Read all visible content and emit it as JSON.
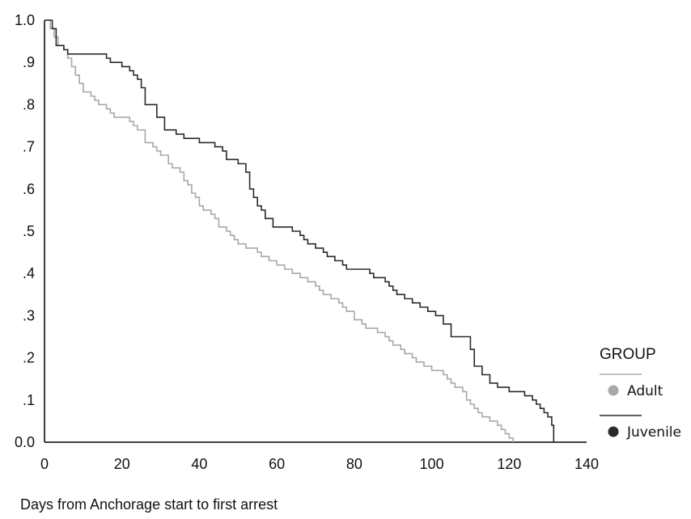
{
  "chart_data": {
    "type": "line",
    "title": "",
    "xlabel": "Days from Anchorage start to first arrest",
    "ylabel": "",
    "xlim": [
      0,
      140
    ],
    "ylim": [
      0,
      1
    ],
    "x_ticks": [
      {
        "value": 0,
        "label": "0"
      },
      {
        "value": 20,
        "label": "20"
      },
      {
        "value": 40,
        "label": "40"
      },
      {
        "value": 60,
        "label": "60"
      },
      {
        "value": 80,
        "label": "80"
      },
      {
        "value": 100,
        "label": "100"
      },
      {
        "value": 120,
        "label": "120"
      },
      {
        "value": 140,
        "label": "140"
      }
    ],
    "y_ticks": [
      {
        "value": 0.0,
        "label": "0.0"
      },
      {
        "value": 0.1,
        "label": ".1"
      },
      {
        "value": 0.2,
        "label": ".2"
      },
      {
        "value": 0.3,
        "label": ".3"
      },
      {
        "value": 0.4,
        "label": ".4"
      },
      {
        "value": 0.5,
        "label": ".5"
      },
      {
        "value": 0.6,
        "label": ".6"
      },
      {
        "value": 0.7,
        "label": ".7"
      },
      {
        "value": 0.8,
        "label": ".8"
      },
      {
        "value": 0.9,
        "label": ".9"
      },
      {
        "value": 1.0,
        "label": "1.0"
      }
    ],
    "grid": false,
    "step": true,
    "legend": {
      "title": "GROUP",
      "position": "right"
    },
    "series": [
      {
        "name": "Adult",
        "color": "#a8a8a8",
        "points": [
          [
            0,
            1.0
          ],
          [
            1.5,
            0.98
          ],
          [
            2.5,
            0.96
          ],
          [
            3.5,
            0.94
          ],
          [
            5,
            0.93
          ],
          [
            6,
            0.91
          ],
          [
            7,
            0.89
          ],
          [
            8,
            0.87
          ],
          [
            9,
            0.85
          ],
          [
            10,
            0.83
          ],
          [
            12,
            0.82
          ],
          [
            13,
            0.81
          ],
          [
            14,
            0.8
          ],
          [
            16,
            0.79
          ],
          [
            17,
            0.78
          ],
          [
            18,
            0.77
          ],
          [
            22,
            0.76
          ],
          [
            23,
            0.75
          ],
          [
            24,
            0.74
          ],
          [
            26,
            0.71
          ],
          [
            28,
            0.7
          ],
          [
            29,
            0.69
          ],
          [
            30,
            0.68
          ],
          [
            32,
            0.66
          ],
          [
            33,
            0.65
          ],
          [
            35,
            0.64
          ],
          [
            36,
            0.62
          ],
          [
            37,
            0.61
          ],
          [
            38,
            0.59
          ],
          [
            39,
            0.58
          ],
          [
            40,
            0.56
          ],
          [
            41,
            0.55
          ],
          [
            43,
            0.54
          ],
          [
            44,
            0.53
          ],
          [
            45,
            0.51
          ],
          [
            47,
            0.5
          ],
          [
            48,
            0.49
          ],
          [
            49,
            0.48
          ],
          [
            50,
            0.47
          ],
          [
            52,
            0.46
          ],
          [
            55,
            0.45
          ],
          [
            56,
            0.44
          ],
          [
            58,
            0.43
          ],
          [
            60,
            0.42
          ],
          [
            62,
            0.41
          ],
          [
            64,
            0.4
          ],
          [
            66,
            0.39
          ],
          [
            68,
            0.38
          ],
          [
            70,
            0.37
          ],
          [
            71,
            0.36
          ],
          [
            72,
            0.35
          ],
          [
            74,
            0.34
          ],
          [
            76,
            0.33
          ],
          [
            77,
            0.32
          ],
          [
            78,
            0.31
          ],
          [
            80,
            0.29
          ],
          [
            82,
            0.28
          ],
          [
            83,
            0.27
          ],
          [
            86,
            0.26
          ],
          [
            88,
            0.25
          ],
          [
            89,
            0.24
          ],
          [
            90,
            0.23
          ],
          [
            92,
            0.22
          ],
          [
            93,
            0.21
          ],
          [
            95,
            0.2
          ],
          [
            96,
            0.19
          ],
          [
            98,
            0.18
          ],
          [
            100,
            0.17
          ],
          [
            103,
            0.16
          ],
          [
            104,
            0.15
          ],
          [
            105,
            0.14
          ],
          [
            106,
            0.13
          ],
          [
            108,
            0.12
          ],
          [
            109,
            0.1
          ],
          [
            110,
            0.09
          ],
          [
            111,
            0.08
          ],
          [
            112,
            0.07
          ],
          [
            113,
            0.06
          ],
          [
            115,
            0.05
          ],
          [
            117,
            0.04
          ],
          [
            118,
            0.03
          ],
          [
            119,
            0.02
          ],
          [
            120,
            0.01
          ],
          [
            121,
            0.0
          ]
        ]
      },
      {
        "name": "Juvenile",
        "color": "#2a2a2a",
        "points": [
          [
            0,
            1.0
          ],
          [
            2,
            0.98
          ],
          [
            3,
            0.94
          ],
          [
            5,
            0.93
          ],
          [
            6,
            0.92
          ],
          [
            8,
            0.92
          ],
          [
            16,
            0.91
          ],
          [
            17,
            0.9
          ],
          [
            20,
            0.89
          ],
          [
            22,
            0.88
          ],
          [
            23,
            0.87
          ],
          [
            24,
            0.86
          ],
          [
            25,
            0.84
          ],
          [
            26,
            0.8
          ],
          [
            29,
            0.77
          ],
          [
            31,
            0.74
          ],
          [
            34,
            0.73
          ],
          [
            36,
            0.72
          ],
          [
            40,
            0.71
          ],
          [
            44,
            0.7
          ],
          [
            46,
            0.69
          ],
          [
            47,
            0.67
          ],
          [
            50,
            0.66
          ],
          [
            52,
            0.64
          ],
          [
            53,
            0.6
          ],
          [
            54,
            0.58
          ],
          [
            55,
            0.56
          ],
          [
            56,
            0.55
          ],
          [
            57,
            0.53
          ],
          [
            59,
            0.51
          ],
          [
            64,
            0.5
          ],
          [
            66,
            0.49
          ],
          [
            67,
            0.48
          ],
          [
            68,
            0.47
          ],
          [
            70,
            0.46
          ],
          [
            72,
            0.45
          ],
          [
            73,
            0.44
          ],
          [
            75,
            0.43
          ],
          [
            77,
            0.42
          ],
          [
            78,
            0.41
          ],
          [
            84,
            0.4
          ],
          [
            85,
            0.39
          ],
          [
            88,
            0.38
          ],
          [
            89,
            0.37
          ],
          [
            90,
            0.36
          ],
          [
            91,
            0.35
          ],
          [
            93,
            0.34
          ],
          [
            95,
            0.33
          ],
          [
            97,
            0.32
          ],
          [
            99,
            0.31
          ],
          [
            101,
            0.3
          ],
          [
            103,
            0.28
          ],
          [
            105,
            0.25
          ],
          [
            110,
            0.22
          ],
          [
            111,
            0.18
          ],
          [
            113,
            0.16
          ],
          [
            115,
            0.14
          ],
          [
            117,
            0.13
          ],
          [
            120,
            0.12
          ],
          [
            124,
            0.11
          ],
          [
            126,
            0.1
          ],
          [
            127,
            0.09
          ],
          [
            128,
            0.08
          ],
          [
            129,
            0.07
          ],
          [
            130,
            0.06
          ],
          [
            131,
            0.04
          ],
          [
            131.5,
            0.0
          ]
        ]
      }
    ]
  }
}
